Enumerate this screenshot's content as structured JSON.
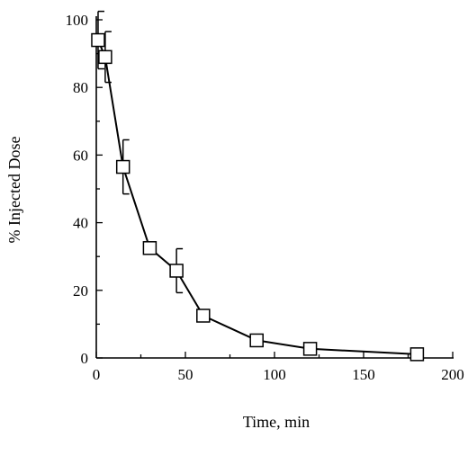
{
  "chart_data": {
    "type": "line",
    "title": "",
    "xlabel": "Time, min",
    "ylabel": "% Injected Dose",
    "xlim": [
      0,
      200
    ],
    "ylim": [
      0,
      100
    ],
    "x_ticks": [
      0,
      50,
      100,
      150,
      200
    ],
    "y_ticks": [
      0,
      20,
      40,
      60,
      80,
      100
    ],
    "grid": false,
    "legend": "none",
    "marker": "open-square",
    "series": [
      {
        "x": [
          1,
          5,
          15,
          30,
          45,
          60,
          90,
          120,
          180
        ],
        "y": [
          94,
          89,
          56.5,
          32.5,
          25.8,
          12.5,
          5.2,
          2.7,
          1.1
        ],
        "error": [
          8.5,
          7.5,
          8.0,
          null,
          6.5,
          null,
          null,
          null,
          null
        ]
      }
    ]
  },
  "colors": {
    "line": "#000000",
    "marker_fill": "#ffffff",
    "background": "#ffffff"
  }
}
